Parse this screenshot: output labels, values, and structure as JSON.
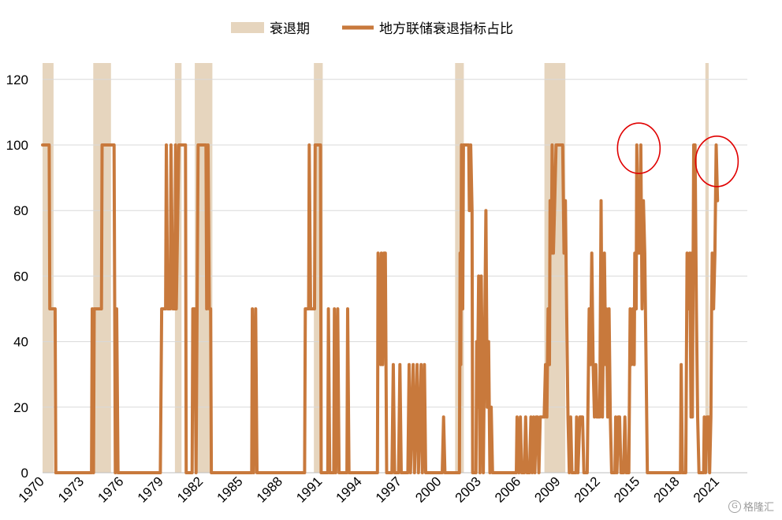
{
  "chart_data": {
    "type": "line",
    "legend": {
      "placement": "top-center",
      "items": [
        {
          "label": "衰退期",
          "kind": "area",
          "color": "#e6d5be"
        },
        {
          "label": "地方联储衰退指标占比",
          "kind": "line",
          "color": "#c8793c"
        }
      ]
    },
    "y_axis": {
      "range": [
        0,
        125
      ],
      "ticks": [
        0,
        20,
        40,
        60,
        80,
        100,
        120
      ],
      "grid": true
    },
    "x_axis": {
      "range": [
        1970.0,
        2023.25
      ],
      "tick_labels": [
        "1970",
        "1973",
        "1976",
        "1979",
        "1982",
        "1985",
        "1988",
        "1991",
        "1994",
        "1997",
        "2000",
        "2003",
        "2006",
        "2009",
        "2012",
        "2015",
        "2018",
        "2021"
      ],
      "label_rotation": -45
    },
    "recessions": [
      [
        1970.0,
        1970.83
      ],
      [
        1973.83,
        1975.17
      ],
      [
        1980.0,
        1980.5
      ],
      [
        1981.5,
        1982.83
      ],
      [
        1990.5,
        1991.17
      ],
      [
        2001.17,
        2001.83
      ],
      [
        2007.92,
        2009.5
      ],
      [
        2020.08,
        2020.33
      ]
    ],
    "series": [
      {
        "name": "地方联储衰退指标占比",
        "color": "#c8793c",
        "points": [
          [
            1970.0,
            100
          ],
          [
            1970.5,
            100
          ],
          [
            1970.55,
            50
          ],
          [
            1970.95,
            50
          ],
          [
            1971.0,
            0
          ],
          [
            1973.7,
            0
          ],
          [
            1973.75,
            50
          ],
          [
            1973.85,
            0
          ],
          [
            1973.9,
            50
          ],
          [
            1974.45,
            50
          ],
          [
            1974.5,
            100
          ],
          [
            1975.4,
            100
          ],
          [
            1975.5,
            0
          ],
          [
            1975.6,
            50
          ],
          [
            1975.7,
            0
          ],
          [
            1978.9,
            0
          ],
          [
            1979.0,
            50
          ],
          [
            1979.3,
            50
          ],
          [
            1979.35,
            100
          ],
          [
            1979.45,
            50
          ],
          [
            1979.65,
            50
          ],
          [
            1979.7,
            100
          ],
          [
            1979.85,
            50
          ],
          [
            1980.0,
            50
          ],
          [
            1980.05,
            100
          ],
          [
            1980.1,
            50
          ],
          [
            1980.3,
            100
          ],
          [
            1980.8,
            100
          ],
          [
            1980.85,
            0
          ],
          [
            1981.3,
            0
          ],
          [
            1981.35,
            50
          ],
          [
            1981.5,
            50
          ],
          [
            1981.6,
            0
          ],
          [
            1981.75,
            100
          ],
          [
            1982.35,
            100
          ],
          [
            1982.4,
            50
          ],
          [
            1982.5,
            100
          ],
          [
            1982.6,
            50
          ],
          [
            1982.7,
            50
          ],
          [
            1982.75,
            0
          ],
          [
            1985.8,
            0
          ],
          [
            1985.85,
            50
          ],
          [
            1985.95,
            0
          ],
          [
            1986.1,
            50
          ],
          [
            1986.2,
            0
          ],
          [
            1989.8,
            0
          ],
          [
            1989.85,
            50
          ],
          [
            1990.1,
            50
          ],
          [
            1990.15,
            100
          ],
          [
            1990.25,
            50
          ],
          [
            1990.55,
            50
          ],
          [
            1990.6,
            100
          ],
          [
            1991.0,
            100
          ],
          [
            1991.05,
            0
          ],
          [
            1991.55,
            0
          ],
          [
            1991.6,
            50
          ],
          [
            1991.7,
            0
          ],
          [
            1992.0,
            0
          ],
          [
            1992.05,
            50
          ],
          [
            1992.15,
            0
          ],
          [
            1992.3,
            50
          ],
          [
            1992.4,
            0
          ],
          [
            1993.0,
            0
          ],
          [
            1993.05,
            50
          ],
          [
            1993.15,
            0
          ],
          [
            1995.3,
            0
          ],
          [
            1995.35,
            67
          ],
          [
            1995.55,
            33
          ],
          [
            1995.6,
            67
          ],
          [
            1995.7,
            33
          ],
          [
            1995.8,
            67
          ],
          [
            1995.9,
            67
          ],
          [
            1996.0,
            0
          ],
          [
            1996.4,
            0
          ],
          [
            1996.5,
            33
          ],
          [
            1996.6,
            0
          ],
          [
            1996.9,
            0
          ],
          [
            1997.0,
            33
          ],
          [
            1997.1,
            0
          ],
          [
            1997.6,
            0
          ],
          [
            1997.7,
            33
          ],
          [
            1997.8,
            0
          ],
          [
            1998.0,
            33
          ],
          [
            1998.1,
            0
          ],
          [
            1998.3,
            33
          ],
          [
            1998.4,
            0
          ],
          [
            1998.6,
            33
          ],
          [
            1998.7,
            0
          ],
          [
            1998.85,
            33
          ],
          [
            1998.95,
            0
          ],
          [
            2000.2,
            0
          ],
          [
            2000.3,
            17
          ],
          [
            2000.4,
            0
          ],
          [
            2001.5,
            0
          ],
          [
            2001.55,
            67
          ],
          [
            2001.6,
            33
          ],
          [
            2001.65,
            100
          ],
          [
            2001.75,
            50
          ],
          [
            2001.8,
            100
          ],
          [
            2002.2,
            100
          ],
          [
            2002.25,
            80
          ],
          [
            2002.35,
            100
          ],
          [
            2002.45,
            80
          ],
          [
            2002.5,
            0
          ],
          [
            2002.75,
            0
          ],
          [
            2002.8,
            40
          ],
          [
            2002.85,
            20
          ],
          [
            2002.95,
            60
          ],
          [
            2003.05,
            0
          ],
          [
            2003.15,
            60
          ],
          [
            2003.3,
            0
          ],
          [
            2003.5,
            80
          ],
          [
            2003.6,
            20
          ],
          [
            2003.7,
            40
          ],
          [
            2003.8,
            0
          ],
          [
            2003.9,
            20
          ],
          [
            2004.0,
            0
          ],
          [
            2005.8,
            0
          ],
          [
            2005.85,
            17
          ],
          [
            2006.0,
            0
          ],
          [
            2006.1,
            17
          ],
          [
            2006.2,
            0
          ],
          [
            2006.4,
            0
          ],
          [
            2006.5,
            17
          ],
          [
            2006.6,
            0
          ],
          [
            2006.8,
            0
          ],
          [
            2006.9,
            17
          ],
          [
            2007.0,
            0
          ],
          [
            2007.1,
            17
          ],
          [
            2007.2,
            0
          ],
          [
            2007.3,
            17
          ],
          [
            2007.4,
            17
          ],
          [
            2007.5,
            0
          ],
          [
            2007.6,
            17
          ],
          [
            2007.9,
            17
          ],
          [
            2008.0,
            33
          ],
          [
            2008.1,
            17
          ],
          [
            2008.2,
            50
          ],
          [
            2008.3,
            33
          ],
          [
            2008.35,
            83
          ],
          [
            2008.45,
            67
          ],
          [
            2008.5,
            100
          ],
          [
            2008.6,
            67
          ],
          [
            2008.7,
            83
          ],
          [
            2008.8,
            100
          ],
          [
            2009.3,
            100
          ],
          [
            2009.4,
            67
          ],
          [
            2009.5,
            83
          ],
          [
            2009.6,
            50
          ],
          [
            2009.7,
            17
          ],
          [
            2009.8,
            0
          ],
          [
            2009.9,
            17
          ],
          [
            2010.0,
            0
          ],
          [
            2010.3,
            0
          ],
          [
            2010.35,
            17
          ],
          [
            2010.45,
            0
          ],
          [
            2010.6,
            17
          ],
          [
            2010.8,
            17
          ],
          [
            2010.9,
            0
          ],
          [
            2011.15,
            0
          ],
          [
            2011.2,
            17
          ],
          [
            2011.3,
            50
          ],
          [
            2011.4,
            33
          ],
          [
            2011.5,
            67
          ],
          [
            2011.6,
            33
          ],
          [
            2011.7,
            17
          ],
          [
            2011.8,
            33
          ],
          [
            2011.9,
            17
          ],
          [
            2012.0,
            17
          ],
          [
            2012.1,
            17
          ],
          [
            2012.2,
            83
          ],
          [
            2012.3,
            17
          ],
          [
            2012.45,
            67
          ],
          [
            2012.55,
            33
          ],
          [
            2012.6,
            50
          ],
          [
            2012.7,
            17
          ],
          [
            2012.8,
            50
          ],
          [
            2012.9,
            17
          ],
          [
            2013.0,
            0
          ],
          [
            2013.25,
            0
          ],
          [
            2013.3,
            17
          ],
          [
            2013.4,
            0
          ],
          [
            2013.5,
            17
          ],
          [
            2013.6,
            17
          ],
          [
            2013.7,
            0
          ],
          [
            2013.9,
            0
          ],
          [
            2014.0,
            17
          ],
          [
            2014.1,
            0
          ],
          [
            2014.3,
            0
          ],
          [
            2014.4,
            50
          ],
          [
            2014.5,
            33
          ],
          [
            2014.6,
            50
          ],
          [
            2014.7,
            33
          ],
          [
            2014.75,
            67
          ],
          [
            2014.85,
            50
          ],
          [
            2014.9,
            100
          ],
          [
            2015.0,
            67
          ],
          [
            2015.1,
            67
          ],
          [
            2015.2,
            100
          ],
          [
            2015.3,
            50
          ],
          [
            2015.4,
            83
          ],
          [
            2015.5,
            67
          ],
          [
            2015.6,
            33
          ],
          [
            2015.7,
            0
          ],
          [
            2018.2,
            0
          ],
          [
            2018.25,
            33
          ],
          [
            2018.35,
            0
          ],
          [
            2018.6,
            0
          ],
          [
            2018.7,
            67
          ],
          [
            2018.8,
            50
          ],
          [
            2018.9,
            67
          ],
          [
            2019.0,
            17
          ],
          [
            2019.05,
            67
          ],
          [
            2019.1,
            17
          ],
          [
            2019.2,
            100
          ],
          [
            2019.3,
            100
          ],
          [
            2019.4,
            50
          ],
          [
            2019.5,
            17
          ],
          [
            2019.6,
            0
          ],
          [
            2019.95,
            0
          ],
          [
            2020.0,
            17
          ],
          [
            2020.1,
            0
          ],
          [
            2020.2,
            17
          ],
          [
            2020.35,
            17
          ],
          [
            2020.4,
            0
          ],
          [
            2020.5,
            17
          ],
          [
            2020.55,
            50
          ],
          [
            2020.6,
            67
          ],
          [
            2020.7,
            50
          ],
          [
            2020.8,
            67
          ],
          [
            2020.9,
            100
          ],
          [
            2021.0,
            83
          ]
        ]
      }
    ]
  },
  "annotations": [
    {
      "kind": "circle",
      "color": "#e00000",
      "label": "",
      "x": 2015.05,
      "y": 99
    },
    {
      "kind": "circle",
      "color": "#e00000",
      "label": "",
      "x": 2020.95,
      "y": 95
    }
  ],
  "watermark": {
    "text": "格隆汇",
    "icon": "g-circle-logo-icon"
  }
}
